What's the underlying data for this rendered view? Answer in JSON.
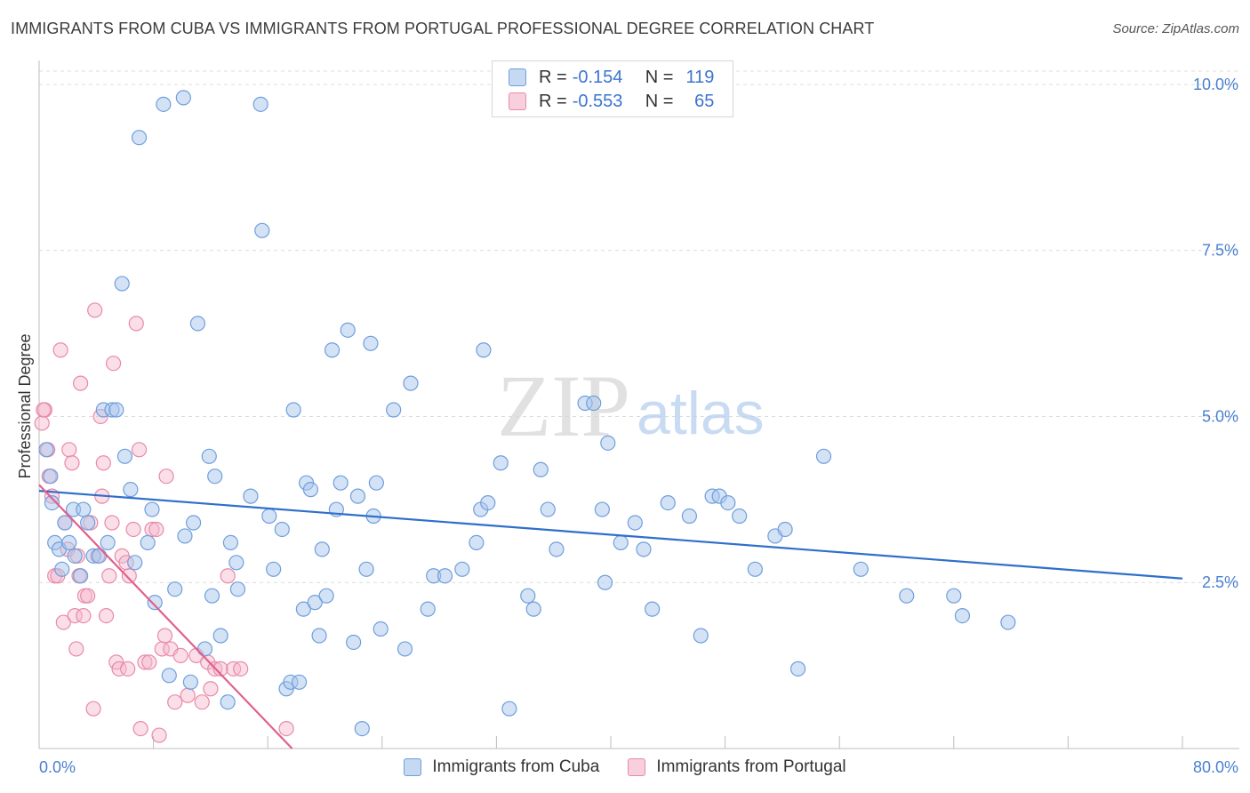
{
  "title": "IMMIGRANTS FROM CUBA VS IMMIGRANTS FROM PORTUGAL PROFESSIONAL DEGREE CORRELATION CHART",
  "source": "Source: ZipAtlas.com",
  "watermark": {
    "zip": "ZIP",
    "atlas": "atlas"
  },
  "legend": {
    "rows": [
      {
        "r_label": "R =",
        "r_value": "-0.154",
        "n_label": "N =",
        "n_value": "119"
      },
      {
        "r_label": "R =",
        "r_value": "-0.553",
        "n_label": "N =",
        "n_value": "65"
      }
    ]
  },
  "bottom_legend": {
    "cuba": "Immigrants from Cuba",
    "portugal": "Immigrants from Portugal"
  },
  "colors": {
    "cuba_fill": "#a9c6ee",
    "cuba_stroke": "#6f9fdc",
    "cuba_line": "#2f6fcc",
    "portugal_fill": "#f5b9cb",
    "portugal_stroke": "#e98aa8",
    "portugal_line": "#e0608e",
    "tick_text": "#4a7fd0",
    "grid": "#dcdcdc"
  },
  "chart_data": {
    "type": "scatter",
    "title": "IMMIGRANTS FROM CUBA VS IMMIGRANTS FROM PORTUGAL PROFESSIONAL DEGREE CORRELATION CHART",
    "xlabel": "",
    "ylabel": "Professional Degree",
    "xlim": [
      0,
      80
    ],
    "ylim": [
      0,
      10.2
    ],
    "x_tick_labels": [
      "0.0%",
      "80.0%"
    ],
    "y_ticks": [
      {
        "value": 2.5,
        "label": "2.5%"
      },
      {
        "value": 5.0,
        "label": "5.0%"
      },
      {
        "value": 7.5,
        "label": "7.5%"
      },
      {
        "value": 10.0,
        "label": "10.0%"
      }
    ],
    "series": [
      {
        "name": "Immigrants from Cuba",
        "r": -0.154,
        "n": 119,
        "trend": {
          "x0": 0.0,
          "y0": 3.88,
          "x1": 80.0,
          "y1": 2.56
        },
        "points": [
          [
            0.5,
            4.5
          ],
          [
            0.8,
            4.1
          ],
          [
            0.9,
            3.7
          ],
          [
            1.1,
            3.1
          ],
          [
            1.4,
            3.0
          ],
          [
            1.6,
            2.7
          ],
          [
            1.8,
            3.4
          ],
          [
            2.1,
            3.1
          ],
          [
            2.4,
            3.6
          ],
          [
            2.5,
            2.9
          ],
          [
            2.9,
            2.6
          ],
          [
            3.1,
            3.6
          ],
          [
            3.4,
            3.4
          ],
          [
            3.8,
            2.9
          ],
          [
            4.2,
            2.9
          ],
          [
            4.5,
            5.1
          ],
          [
            4.8,
            3.1
          ],
          [
            5.1,
            5.1
          ],
          [
            5.4,
            5.1
          ],
          [
            5.8,
            7.0
          ],
          [
            6.0,
            4.4
          ],
          [
            6.4,
            3.9
          ],
          [
            6.7,
            2.8
          ],
          [
            7.0,
            9.2
          ],
          [
            7.6,
            3.1
          ],
          [
            7.9,
            3.6
          ],
          [
            8.1,
            2.2
          ],
          [
            8.7,
            9.7
          ],
          [
            9.1,
            1.1
          ],
          [
            9.5,
            2.4
          ],
          [
            10.1,
            9.8
          ],
          [
            10.2,
            3.2
          ],
          [
            10.6,
            1.0
          ],
          [
            10.8,
            3.4
          ],
          [
            11.1,
            6.4
          ],
          [
            11.6,
            1.5
          ],
          [
            11.9,
            4.4
          ],
          [
            12.1,
            2.3
          ],
          [
            12.3,
            4.1
          ],
          [
            12.7,
            1.7
          ],
          [
            13.2,
            0.7
          ],
          [
            13.4,
            3.1
          ],
          [
            13.8,
            2.8
          ],
          [
            13.9,
            2.4
          ],
          [
            14.8,
            3.8
          ],
          [
            15.5,
            9.7
          ],
          [
            15.6,
            7.8
          ],
          [
            16.1,
            3.5
          ],
          [
            16.4,
            2.7
          ],
          [
            17.0,
            3.3
          ],
          [
            17.3,
            0.9
          ],
          [
            17.6,
            1.0
          ],
          [
            17.8,
            5.1
          ],
          [
            18.2,
            1.0
          ],
          [
            18.5,
            2.1
          ],
          [
            18.7,
            4.0
          ],
          [
            19.0,
            3.9
          ],
          [
            19.3,
            2.2
          ],
          [
            19.6,
            1.7
          ],
          [
            19.8,
            3.0
          ],
          [
            20.1,
            2.3
          ],
          [
            20.5,
            6.0
          ],
          [
            20.8,
            3.6
          ],
          [
            21.1,
            4.0
          ],
          [
            21.6,
            6.3
          ],
          [
            22.0,
            1.6
          ],
          [
            22.3,
            3.8
          ],
          [
            22.6,
            0.3
          ],
          [
            22.9,
            2.7
          ],
          [
            23.2,
            6.1
          ],
          [
            23.4,
            3.5
          ],
          [
            23.6,
            4.0
          ],
          [
            23.9,
            1.8
          ],
          [
            24.8,
            5.1
          ],
          [
            25.6,
            1.5
          ],
          [
            26.0,
            5.5
          ],
          [
            27.2,
            2.1
          ],
          [
            27.6,
            2.6
          ],
          [
            28.4,
            2.6
          ],
          [
            29.6,
            2.7
          ],
          [
            30.6,
            3.1
          ],
          [
            30.9,
            3.6
          ],
          [
            31.1,
            6.0
          ],
          [
            31.4,
            3.7
          ],
          [
            32.3,
            4.3
          ],
          [
            32.9,
            0.6
          ],
          [
            34.2,
            2.3
          ],
          [
            34.6,
            2.1
          ],
          [
            35.1,
            4.2
          ],
          [
            35.6,
            3.6
          ],
          [
            36.2,
            3.0
          ],
          [
            38.2,
            5.2
          ],
          [
            38.8,
            5.2
          ],
          [
            39.4,
            3.6
          ],
          [
            39.6,
            2.5
          ],
          [
            39.8,
            4.6
          ],
          [
            40.7,
            3.1
          ],
          [
            41.7,
            3.4
          ],
          [
            42.3,
            3.0
          ],
          [
            42.9,
            2.1
          ],
          [
            44.0,
            3.7
          ],
          [
            45.5,
            3.5
          ],
          [
            46.3,
            1.7
          ],
          [
            47.1,
            3.8
          ],
          [
            47.6,
            3.8
          ],
          [
            48.2,
            3.7
          ],
          [
            49.0,
            3.5
          ],
          [
            50.1,
            2.7
          ],
          [
            51.5,
            3.2
          ],
          [
            52.2,
            3.3
          ],
          [
            53.1,
            1.2
          ],
          [
            54.9,
            4.4
          ],
          [
            57.5,
            2.7
          ],
          [
            60.7,
            2.3
          ],
          [
            64.0,
            2.3
          ],
          [
            64.6,
            2.0
          ],
          [
            67.8,
            1.9
          ]
        ]
      },
      {
        "name": "Immigrants from Portugal",
        "r": -0.553,
        "n": 65,
        "trend": {
          "x0": 0.0,
          "y0": 3.97,
          "x1": 17.7,
          "y1": 0.0
        },
        "points": [
          [
            0.2,
            4.9
          ],
          [
            0.4,
            5.1
          ],
          [
            0.6,
            4.5
          ],
          [
            0.7,
            4.1
          ],
          [
            0.9,
            3.8
          ],
          [
            1.1,
            2.6
          ],
          [
            1.3,
            2.6
          ],
          [
            1.5,
            6.0
          ],
          [
            1.7,
            1.9
          ],
          [
            1.8,
            3.4
          ],
          [
            2.0,
            3.0
          ],
          [
            2.1,
            4.5
          ],
          [
            2.3,
            4.3
          ],
          [
            2.5,
            2.0
          ],
          [
            2.6,
            1.5
          ],
          [
            2.7,
            2.9
          ],
          [
            2.8,
            2.6
          ],
          [
            2.9,
            5.5
          ],
          [
            3.1,
            2.0
          ],
          [
            3.2,
            2.3
          ],
          [
            3.4,
            2.3
          ],
          [
            3.6,
            3.4
          ],
          [
            3.8,
            0.6
          ],
          [
            3.9,
            6.6
          ],
          [
            4.1,
            2.9
          ],
          [
            4.3,
            5.0
          ],
          [
            4.4,
            3.8
          ],
          [
            4.5,
            4.3
          ],
          [
            4.7,
            2.0
          ],
          [
            4.9,
            2.6
          ],
          [
            5.1,
            3.4
          ],
          [
            5.2,
            5.8
          ],
          [
            5.4,
            1.3
          ],
          [
            5.6,
            1.2
          ],
          [
            5.8,
            2.9
          ],
          [
            6.1,
            2.8
          ],
          [
            6.2,
            1.2
          ],
          [
            6.3,
            2.6
          ],
          [
            6.6,
            3.3
          ],
          [
            6.8,
            6.4
          ],
          [
            7.0,
            4.5
          ],
          [
            7.1,
            0.3
          ],
          [
            7.4,
            1.3
          ],
          [
            7.7,
            1.3
          ],
          [
            7.9,
            3.3
          ],
          [
            8.2,
            3.3
          ],
          [
            8.4,
            0.2
          ],
          [
            8.6,
            1.5
          ],
          [
            8.8,
            1.7
          ],
          [
            8.9,
            4.1
          ],
          [
            9.2,
            1.5
          ],
          [
            9.5,
            0.7
          ],
          [
            9.9,
            1.4
          ],
          [
            10.4,
            0.8
          ],
          [
            11.0,
            1.4
          ],
          [
            11.4,
            0.7
          ],
          [
            11.8,
            1.3
          ],
          [
            12.0,
            0.9
          ],
          [
            12.3,
            1.2
          ],
          [
            12.7,
            1.2
          ],
          [
            13.2,
            2.6
          ],
          [
            13.6,
            1.2
          ],
          [
            14.1,
            1.2
          ],
          [
            17.3,
            0.3
          ],
          [
            0.3,
            5.1
          ]
        ]
      }
    ]
  }
}
